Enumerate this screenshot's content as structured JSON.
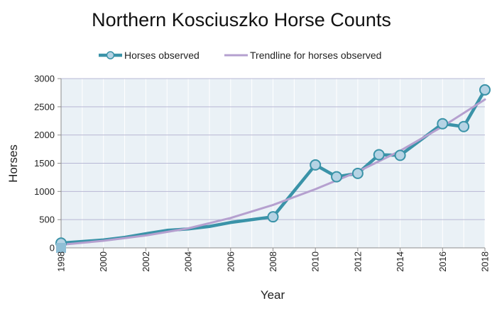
{
  "chart_data": {
    "type": "line",
    "title": "Northern Kosciuszko Horse Counts",
    "xlabel": "Year",
    "ylabel": "Horses",
    "xlim": [
      1998,
      2018
    ],
    "ylim": [
      0,
      3000
    ],
    "x_ticks": [
      "1998",
      "2000",
      "2002",
      "2004",
      "2006",
      "2008",
      "2010",
      "2012",
      "2014",
      "2016",
      "2018"
    ],
    "y_ticks": [
      "0",
      "500",
      "1000",
      "1500",
      "2000",
      "2500",
      "3000"
    ],
    "grid": true,
    "legend_position": "top",
    "series": [
      {
        "name": "Horses observed",
        "color": "#3a93a8",
        "marker_fill": "#b5d3e4",
        "line_x": [
          1998,
          2000,
          2001,
          2002,
          2003,
          2004,
          2005,
          2006,
          2007,
          2008,
          2010,
          2011,
          2012,
          2013,
          2014,
          2016,
          2017,
          2018
        ],
        "line_y": [
          85,
          140,
          185,
          250,
          310,
          335,
          380,
          450,
          500,
          550,
          1470,
          1260,
          1320,
          1650,
          1640,
          2200,
          2150,
          2800
        ],
        "marker_x": [
          1998,
          2008,
          2010,
          2011,
          2012,
          2013,
          2014,
          2016,
          2017,
          2018
        ],
        "marker_y": [
          85,
          550,
          1470,
          1260,
          1320,
          1650,
          1640,
          2200,
          2150,
          2800
        ]
      },
      {
        "name": "Trendline for horses observed",
        "color": "#b5a0cf",
        "x": [
          1998,
          2000,
          2002,
          2004,
          2006,
          2008,
          2010,
          2012,
          2014,
          2016,
          2018
        ],
        "y": [
          55,
          125,
          220,
          345,
          530,
          760,
          1040,
          1350,
          1720,
          2150,
          2630
        ]
      }
    ]
  },
  "colors": {
    "plot_background": "#eaf1f6",
    "grid": "#b7b7d4",
    "axis": "#8c8c8c",
    "origin_marker": "#8fbfd6"
  }
}
